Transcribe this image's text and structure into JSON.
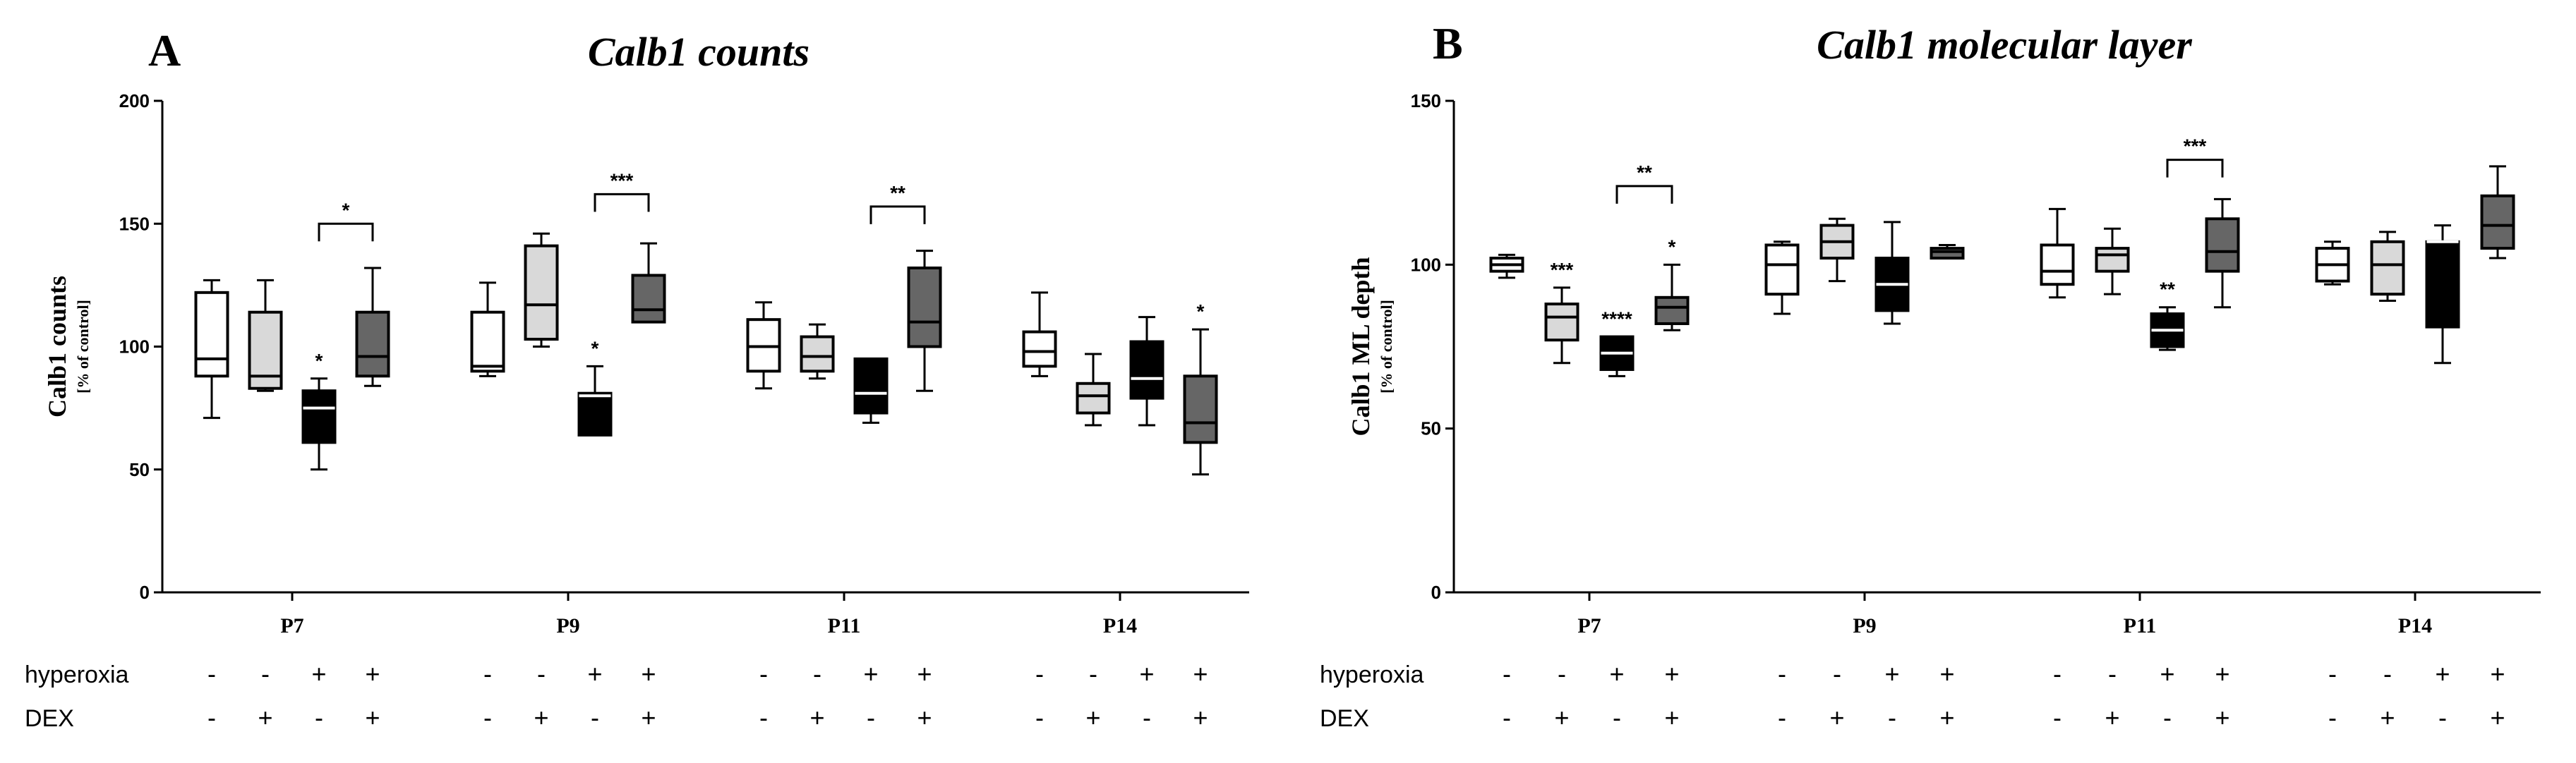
{
  "chart_data": [
    {
      "type": "box",
      "panel_letter": "A",
      "title": "Calb1 counts",
      "ylabel": "Calb1 counts",
      "ylabel_unit": "[% of control]",
      "ylim": [
        0,
        200
      ],
      "yticks": [
        0,
        50,
        100,
        150,
        200
      ],
      "categories": [
        "P7",
        "P9",
        "P11",
        "P14"
      ],
      "groups": [
        {
          "hyperoxia": "-",
          "dex": "-",
          "fill": "#ffffff"
        },
        {
          "hyperoxia": "-",
          "dex": "+",
          "fill": "#d9d9d9"
        },
        {
          "hyperoxia": "+",
          "dex": "-",
          "fill": "#000000"
        },
        {
          "hyperoxia": "+",
          "dex": "+",
          "fill": "#666666"
        }
      ],
      "boxes": [
        [
          {
            "min": 71,
            "q1": 88,
            "median": 95,
            "q3": 122,
            "max": 127
          },
          {
            "min": 82,
            "q1": 83,
            "median": 88,
            "q3": 114,
            "max": 127
          },
          {
            "min": 50,
            "q1": 61,
            "median": 75,
            "q3": 82,
            "max": 87
          },
          {
            "min": 84,
            "q1": 88,
            "median": 96,
            "q3": 114,
            "max": 132
          }
        ],
        [
          {
            "min": 88,
            "q1": 90,
            "median": 92,
            "q3": 114,
            "max": 126
          },
          {
            "min": 100,
            "q1": 103,
            "median": 117,
            "q3": 141,
            "max": 146
          },
          {
            "min": 64,
            "q1": 64,
            "median": 80,
            "q3": 81,
            "max": 92
          },
          {
            "min": 110,
            "q1": 110,
            "median": 115,
            "q3": 129,
            "max": 142
          }
        ],
        [
          {
            "min": 83,
            "q1": 90,
            "median": 100,
            "q3": 111,
            "max": 118
          },
          {
            "min": 87,
            "q1": 90,
            "median": 96,
            "q3": 104,
            "max": 109
          },
          {
            "min": 69,
            "q1": 73,
            "median": 81,
            "q3": 95,
            "max": 95
          },
          {
            "min": 82,
            "q1": 100,
            "median": 110,
            "q3": 132,
            "max": 139
          }
        ],
        [
          {
            "min": 88,
            "q1": 92,
            "median": 98,
            "q3": 106,
            "max": 122
          },
          {
            "min": 68,
            "q1": 73,
            "median": 80,
            "q3": 85,
            "max": 97
          },
          {
            "min": 68,
            "q1": 79,
            "median": 87,
            "q3": 102,
            "max": 112
          },
          {
            "min": 48,
            "q1": 61,
            "median": 69,
            "q3": 88,
            "max": 107
          }
        ]
      ],
      "asterisks": [
        {
          "category": 0,
          "group": 2,
          "text": "*"
        },
        {
          "category": 1,
          "group": 2,
          "text": "*"
        },
        {
          "category": 3,
          "group": 3,
          "text": "*"
        }
      ],
      "brackets": [
        {
          "category": 0,
          "from": 2,
          "to": 3,
          "y": 150,
          "text": "*"
        },
        {
          "category": 1,
          "from": 2,
          "to": 3,
          "y": 162,
          "text": "***"
        },
        {
          "category": 2,
          "from": 2,
          "to": 3,
          "y": 157,
          "text": "**"
        }
      ]
    },
    {
      "type": "box",
      "panel_letter": "B",
      "title": "Calb1 molecular layer",
      "ylabel": "Calb1 ML depth",
      "ylabel_unit": "[% of control]",
      "ylim": [
        0,
        150
      ],
      "yticks": [
        0,
        50,
        100,
        150
      ],
      "categories": [
        "P7",
        "P9",
        "P11",
        "P14"
      ],
      "groups": [
        {
          "hyperoxia": "-",
          "dex": "-",
          "fill": "#ffffff"
        },
        {
          "hyperoxia": "-",
          "dex": "+",
          "fill": "#d9d9d9"
        },
        {
          "hyperoxia": "+",
          "dex": "-",
          "fill": "#000000"
        },
        {
          "hyperoxia": "+",
          "dex": "+",
          "fill": "#666666"
        }
      ],
      "boxes": [
        [
          {
            "min": 96,
            "q1": 98,
            "median": 100,
            "q3": 102,
            "max": 103
          },
          {
            "min": 70,
            "q1": 77,
            "median": 84,
            "q3": 88,
            "max": 93
          },
          {
            "min": 66,
            "q1": 68,
            "median": 73,
            "q3": 78,
            "max": 78
          },
          {
            "min": 80,
            "q1": 82,
            "median": 87,
            "q3": 90,
            "max": 100
          }
        ],
        [
          {
            "min": 85,
            "q1": 91,
            "median": 100,
            "q3": 106,
            "max": 107
          },
          {
            "min": 95,
            "q1": 102,
            "median": 107,
            "q3": 112,
            "max": 114
          },
          {
            "min": 82,
            "q1": 86,
            "median": 94,
            "q3": 102,
            "max": 113
          },
          {
            "min": 102,
            "q1": 102,
            "median": 104,
            "q3": 105,
            "max": 106
          }
        ],
        [
          {
            "min": 90,
            "q1": 94,
            "median": 98,
            "q3": 106,
            "max": 117
          },
          {
            "min": 91,
            "q1": 98,
            "median": 103,
            "q3": 105,
            "max": 111
          },
          {
            "min": 74,
            "q1": 75,
            "median": 80,
            "q3": 85,
            "max": 87
          },
          {
            "min": 87,
            "q1": 98,
            "median": 104,
            "q3": 114,
            "max": 120
          }
        ],
        [
          {
            "min": 94,
            "q1": 95,
            "median": 100,
            "q3": 105,
            "max": 107
          },
          {
            "min": 89,
            "q1": 91,
            "median": 100,
            "q3": 107,
            "max": 110
          },
          {
            "min": 70,
            "q1": 81,
            "median": 107,
            "q3": 107,
            "max": 112
          },
          {
            "min": 102,
            "q1": 105,
            "median": 112,
            "q3": 121,
            "max": 130
          }
        ]
      ],
      "asterisks": [
        {
          "category": 0,
          "group": 1,
          "text": "***"
        },
        {
          "category": 0,
          "group": 2,
          "text": "****"
        },
        {
          "category": 0,
          "group": 3,
          "text": "*"
        },
        {
          "category": 2,
          "group": 2,
          "text": "**"
        }
      ],
      "brackets": [
        {
          "category": 0,
          "from": 2,
          "to": 3,
          "y": 124,
          "text": "**"
        },
        {
          "category": 2,
          "from": 2,
          "to": 3,
          "y": 132,
          "text": "***"
        }
      ]
    }
  ],
  "conditions": {
    "labels": [
      "hyperoxia",
      "DEX"
    ]
  }
}
